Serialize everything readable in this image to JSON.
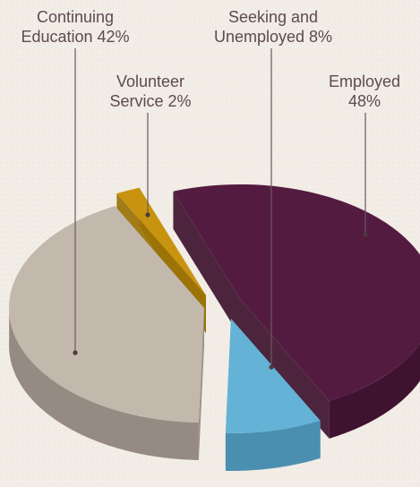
{
  "chart_data": {
    "type": "pie",
    "title": "",
    "style": "3d-exploded",
    "slices": [
      {
        "label": "Employed",
        "value": 48,
        "percent_label": "48%",
        "color": "#541b41",
        "side_color": "#3f1230"
      },
      {
        "label": "Seeking and Unemployed",
        "value": 8,
        "percent_label": "8%",
        "color": "#64b3d6",
        "side_color": "#4b8fb0"
      },
      {
        "label": "Continuing Education",
        "value": 42,
        "percent_label": "42%",
        "color": "#c3b8ac",
        "side_color": "#958b82"
      },
      {
        "label": "Volunteer Service",
        "value": 2,
        "percent_label": "2%",
        "color": "#c8940f",
        "side_color": "#9b7207"
      }
    ],
    "labels": [
      {
        "text": "Continuing\nEducation 42%"
      },
      {
        "text": "Seeking and\nUnemployed 8%"
      },
      {
        "text": "Volunteer\nService 2%"
      },
      {
        "text": "Employed\n48%"
      }
    ]
  }
}
